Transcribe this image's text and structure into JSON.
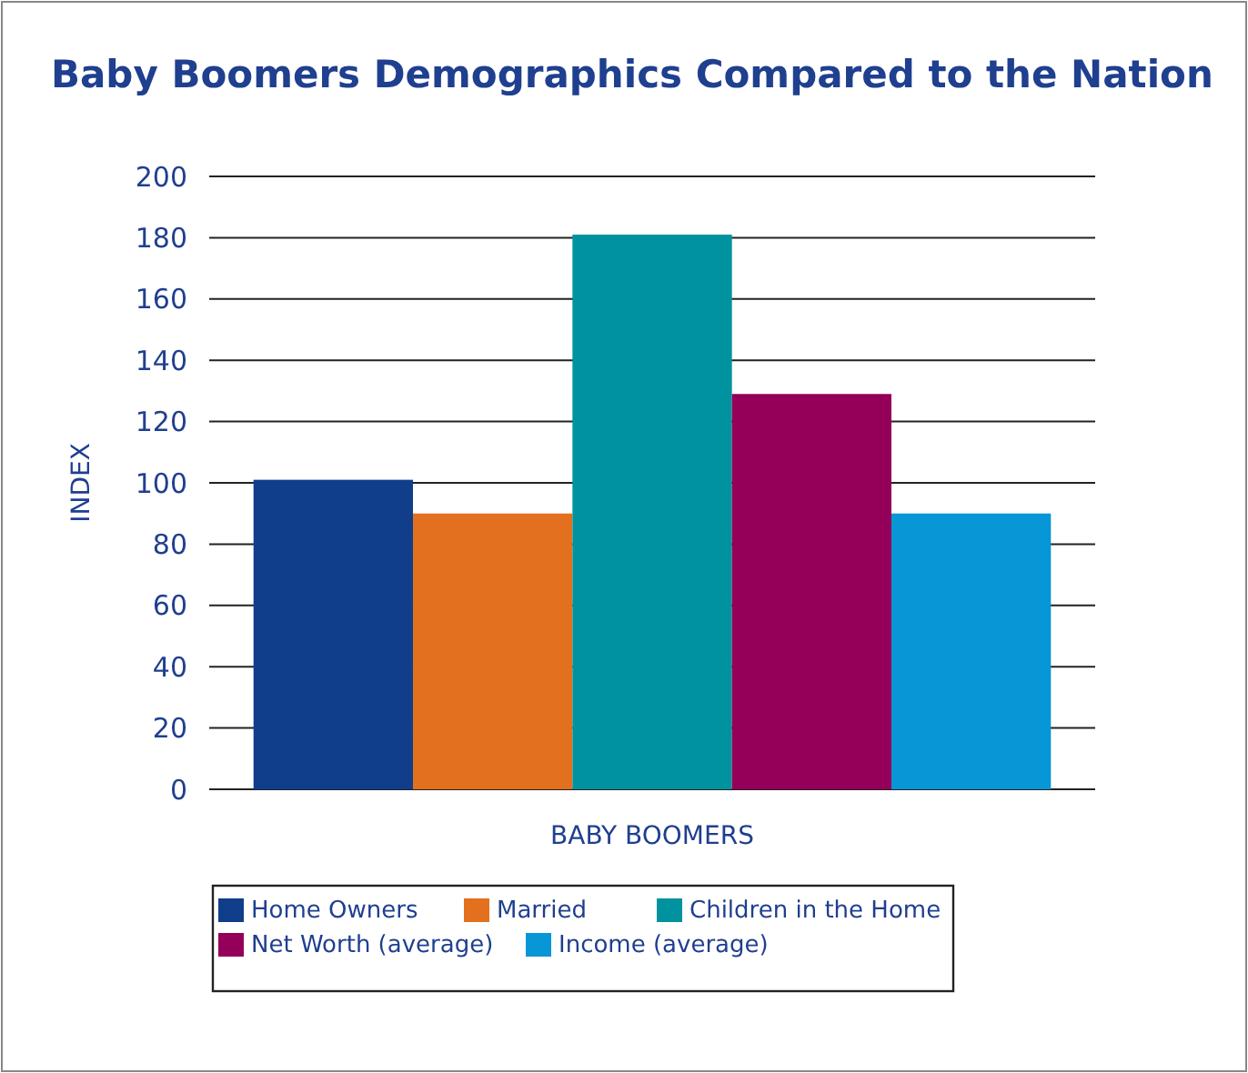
{
  "chart_data": {
    "type": "bar",
    "title": "Baby Boomers Demographics Compared to the Nation",
    "ylabel": "INDEX",
    "categories": [
      "BABY BOOMERS"
    ],
    "series": [
      {
        "name": "Home Owners",
        "color": "#103e8a",
        "values": [
          101
        ]
      },
      {
        "name": "Married",
        "color": "#e2701f",
        "values": [
          90
        ]
      },
      {
        "name": "Children in the Home",
        "color": "#00929e",
        "values": [
          181
        ]
      },
      {
        "name": "Net Worth (average)",
        "color": "#940059",
        "values": [
          129
        ]
      },
      {
        "name": "Income (average)",
        "color": "#0796d6",
        "values": [
          90
        ]
      }
    ],
    "ylim": [
      0,
      200
    ],
    "yticks": [
      0,
      20,
      40,
      60,
      80,
      100,
      120,
      140,
      160,
      180,
      200
    ],
    "grid": "y",
    "legend": "bottom"
  }
}
